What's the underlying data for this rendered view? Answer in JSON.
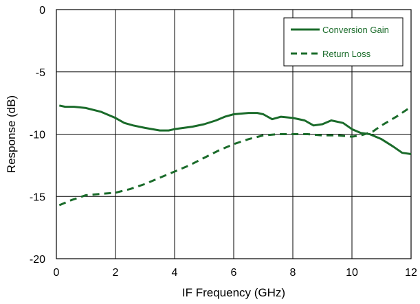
{
  "chart_data": {
    "type": "line",
    "title": "",
    "xlabel": "IF Frequency (GHz)",
    "ylabel": "Response (dB)",
    "xlim": [
      0,
      12
    ],
    "ylim": [
      -20,
      0
    ],
    "xticks": [
      0,
      2,
      4,
      6,
      8,
      10,
      12
    ],
    "yticks": [
      0,
      -5,
      -10,
      -15,
      -20
    ],
    "grid": true,
    "legend_position": "top-right",
    "series": [
      {
        "name": "Conversion Gain",
        "style": "solid",
        "color": "#1a6b2a",
        "x": [
          0.1,
          0.3,
          0.6,
          1.0,
          1.5,
          2.0,
          2.3,
          2.6,
          3.0,
          3.5,
          3.8,
          4.0,
          4.3,
          4.6,
          5.0,
          5.4,
          5.7,
          6.0,
          6.5,
          6.8,
          7.0,
          7.3,
          7.6,
          8.0,
          8.4,
          8.7,
          9.0,
          9.3,
          9.7,
          10.0,
          10.3,
          10.6,
          11.0,
          11.4,
          11.7,
          12.0
        ],
        "y": [
          -7.7,
          -7.8,
          -7.8,
          -7.9,
          -8.2,
          -8.7,
          -9.1,
          -9.3,
          -9.5,
          -9.7,
          -9.7,
          -9.6,
          -9.5,
          -9.4,
          -9.2,
          -8.9,
          -8.6,
          -8.4,
          -8.3,
          -8.3,
          -8.4,
          -8.8,
          -8.6,
          -8.7,
          -8.9,
          -9.3,
          -9.2,
          -8.9,
          -9.1,
          -9.6,
          -9.9,
          -10.0,
          -10.4,
          -11.0,
          -11.5,
          -11.6
        ]
      },
      {
        "name": "Return Loss",
        "style": "dashed",
        "color": "#1a6b2a",
        "x": [
          0.1,
          0.5,
          1.0,
          1.5,
          2.0,
          2.5,
          3.0,
          3.5,
          4.0,
          4.5,
          5.0,
          5.5,
          6.0,
          6.5,
          7.0,
          7.5,
          8.0,
          8.5,
          9.0,
          9.5,
          10.0,
          10.3,
          10.7,
          11.0,
          11.5,
          12.0
        ],
        "y": [
          -15.7,
          -15.3,
          -14.9,
          -14.8,
          -14.7,
          -14.4,
          -14.0,
          -13.5,
          -13.0,
          -12.5,
          -11.9,
          -11.3,
          -10.8,
          -10.4,
          -10.1,
          -10.0,
          -10.0,
          -10.0,
          -10.1,
          -10.1,
          -10.2,
          -10.1,
          -9.8,
          -9.3,
          -8.6,
          -7.8
        ]
      }
    ]
  }
}
